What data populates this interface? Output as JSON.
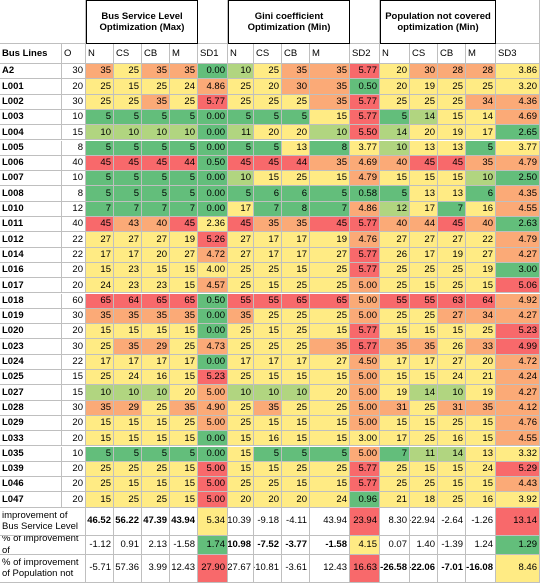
{
  "headers": {
    "group_bus": "Bus Service Level Optimization (Max)",
    "group_gini": "Gini coefficient Optimization (Min)",
    "group_pop": "Population not covered optimization (Min)",
    "bus_lines": "Bus Lines",
    "o": "O",
    "cols": [
      "N",
      "CS",
      "CB",
      "M",
      "SD1",
      "N",
      "CS",
      "CB",
      "M",
      "SD2",
      "N",
      "CS",
      "CB",
      "M",
      "SD3"
    ]
  },
  "colors": {
    "red": "#f8696b",
    "orange": "#fbaa77",
    "yellow": "#ffeb84",
    "lightgreen": "#b1d580",
    "green": "#63be7b",
    "white": "#ffffff"
  },
  "rows": [
    {
      "line": "A2",
      "o": "30",
      "vals": [
        "35",
        "25",
        "35",
        "35",
        "0.00",
        "10",
        "25",
        "35",
        "35",
        "5.77",
        "20",
        "30",
        "28",
        "28",
        "3.86"
      ],
      "cls": [
        "o",
        "y",
        "o",
        "o",
        "G",
        "g",
        "y",
        "o",
        "o",
        "R",
        "y",
        "o",
        "o",
        "o",
        "y"
      ]
    },
    {
      "line": "L001",
      "o": "20",
      "vals": [
        "25",
        "15",
        "25",
        "24",
        "4.86",
        "25",
        "20",
        "30",
        "35",
        "0.50",
        "20",
        "19",
        "25",
        "25",
        "3.20"
      ],
      "cls": [
        "y",
        "y",
        "y",
        "y",
        "o",
        "y",
        "y",
        "o",
        "o",
        "G",
        "y",
        "y",
        "y",
        "y",
        "y"
      ]
    },
    {
      "line": "L002",
      "o": "30",
      "vals": [
        "25",
        "25",
        "35",
        "25",
        "5.77",
        "25",
        "25",
        "25",
        "35",
        "5.77",
        "25",
        "25",
        "25",
        "34",
        "4.36"
      ],
      "cls": [
        "y",
        "y",
        "o",
        "y",
        "R",
        "y",
        "y",
        "y",
        "o",
        "R",
        "y",
        "y",
        "y",
        "o",
        "o"
      ]
    },
    {
      "line": "L003",
      "o": "10",
      "vals": [
        "5",
        "5",
        "5",
        "5",
        "0.00",
        "5",
        "5",
        "5",
        "15",
        "5.77",
        "5",
        "14",
        "15",
        "14",
        "4.69"
      ],
      "cls": [
        "G",
        "G",
        "G",
        "G",
        "G",
        "G",
        "G",
        "G",
        "y",
        "R",
        "G",
        "g",
        "y",
        "y",
        "o"
      ]
    },
    {
      "line": "L004",
      "o": "15",
      "vals": [
        "10",
        "10",
        "10",
        "10",
        "0.00",
        "11",
        "20",
        "20",
        "10",
        "5.50",
        "14",
        "20",
        "19",
        "17",
        "2.65"
      ],
      "cls": [
        "g",
        "g",
        "g",
        "g",
        "G",
        "g",
        "y",
        "y",
        "g",
        "R",
        "g",
        "y",
        "y",
        "y",
        "G"
      ]
    },
    {
      "line": "L005",
      "o": "8",
      "vals": [
        "5",
        "5",
        "5",
        "5",
        "0.00",
        "5",
        "5",
        "13",
        "8",
        "3.77",
        "10",
        "13",
        "13",
        "5",
        "3.77"
      ],
      "cls": [
        "G",
        "G",
        "G",
        "G",
        "G",
        "G",
        "G",
        "y",
        "G",
        "y",
        "g",
        "y",
        "y",
        "G",
        "y"
      ]
    },
    {
      "line": "L006",
      "o": "40",
      "vals": [
        "45",
        "45",
        "45",
        "44",
        "0.50",
        "45",
        "45",
        "44",
        "35",
        "4.69",
        "40",
        "45",
        "45",
        "35",
        "4.79"
      ],
      "cls": [
        "r",
        "r",
        "r",
        "r",
        "G",
        "r",
        "r",
        "r",
        "o",
        "o",
        "o",
        "r",
        "r",
        "o",
        "o"
      ]
    },
    {
      "line": "L007",
      "o": "10",
      "vals": [
        "5",
        "5",
        "5",
        "5",
        "0.00",
        "10",
        "15",
        "25",
        "15",
        "4.79",
        "15",
        "15",
        "15",
        "10",
        "2.50"
      ],
      "cls": [
        "G",
        "G",
        "G",
        "G",
        "G",
        "g",
        "y",
        "y",
        "y",
        "o",
        "y",
        "y",
        "y",
        "g",
        "G"
      ]
    },
    {
      "line": "L008",
      "o": "8",
      "vals": [
        "5",
        "5",
        "5",
        "5",
        "0.00",
        "5",
        "6",
        "6",
        "5",
        "0.58",
        "5",
        "13",
        "13",
        "6",
        "4.35"
      ],
      "cls": [
        "G",
        "G",
        "G",
        "G",
        "G",
        "G",
        "G",
        "G",
        "G",
        "G",
        "G",
        "y",
        "y",
        "G",
        "o"
      ]
    },
    {
      "line": "L010",
      "o": "12",
      "vals": [
        "7",
        "7",
        "7",
        "7",
        "0.00",
        "17",
        "7",
        "8",
        "7",
        "4.86",
        "12",
        "17",
        "7",
        "16",
        "4.55"
      ],
      "cls": [
        "G",
        "G",
        "G",
        "G",
        "G",
        "y",
        "G",
        "G",
        "G",
        "o",
        "g",
        "y",
        "G",
        "y",
        "o"
      ]
    },
    {
      "line": "L011",
      "o": "40",
      "vals": [
        "45",
        "43",
        "40",
        "45",
        "2.36",
        "45",
        "35",
        "35",
        "45",
        "5.77",
        "40",
        "44",
        "45",
        "40",
        "2.63"
      ],
      "cls": [
        "r",
        "o",
        "o",
        "r",
        "y",
        "r",
        "o",
        "o",
        "r",
        "R",
        "o",
        "o",
        "r",
        "o",
        "G"
      ]
    },
    {
      "line": "L012",
      "o": "22",
      "vals": [
        "27",
        "27",
        "27",
        "19",
        "5.26",
        "27",
        "17",
        "17",
        "19",
        "4.76",
        "27",
        "27",
        "27",
        "22",
        "4.79"
      ],
      "cls": [
        "y",
        "y",
        "y",
        "y",
        "R",
        "y",
        "y",
        "y",
        "y",
        "o",
        "y",
        "y",
        "y",
        "y",
        "o"
      ]
    },
    {
      "line": "L014",
      "o": "22",
      "vals": [
        "17",
        "17",
        "20",
        "27",
        "4.72",
        "27",
        "17",
        "17",
        "27",
        "5.77",
        "26",
        "17",
        "19",
        "27",
        "4.27"
      ],
      "cls": [
        "y",
        "y",
        "y",
        "y",
        "o",
        "y",
        "y",
        "y",
        "y",
        "R",
        "y",
        "y",
        "y",
        "y",
        "o"
      ]
    },
    {
      "line": "L016",
      "o": "20",
      "vals": [
        "15",
        "23",
        "15",
        "15",
        "4.00",
        "25",
        "25",
        "15",
        "25",
        "5.77",
        "25",
        "25",
        "25",
        "19",
        "3.00"
      ],
      "cls": [
        "y",
        "y",
        "y",
        "y",
        "y",
        "y",
        "y",
        "y",
        "y",
        "R",
        "y",
        "y",
        "y",
        "y",
        "G"
      ]
    },
    {
      "line": "L017",
      "o": "20",
      "vals": [
        "24",
        "23",
        "23",
        "15",
        "4.57",
        "25",
        "15",
        "25",
        "25",
        "5.00",
        "25",
        "15",
        "25",
        "15",
        "5.06"
      ],
      "cls": [
        "y",
        "y",
        "y",
        "y",
        "o",
        "y",
        "y",
        "y",
        "y",
        "o",
        "y",
        "y",
        "y",
        "y",
        "R"
      ]
    },
    {
      "line": "L018",
      "o": "60",
      "vals": [
        "65",
        "64",
        "65",
        "65",
        "0.50",
        "55",
        "55",
        "65",
        "65",
        "5.00",
        "55",
        "55",
        "63",
        "64",
        "4.92"
      ],
      "cls": [
        "R",
        "R",
        "R",
        "R",
        "G",
        "R",
        "R",
        "R",
        "R",
        "o",
        "R",
        "R",
        "R",
        "R",
        "o"
      ]
    },
    {
      "line": "L019",
      "o": "30",
      "vals": [
        "35",
        "35",
        "35",
        "35",
        "0.00",
        "35",
        "25",
        "25",
        "25",
        "5.00",
        "25",
        "25",
        "27",
        "34",
        "4.27"
      ],
      "cls": [
        "o",
        "o",
        "o",
        "o",
        "G",
        "o",
        "y",
        "y",
        "y",
        "o",
        "y",
        "y",
        "o",
        "o",
        "o"
      ]
    },
    {
      "line": "L020",
      "o": "20",
      "vals": [
        "15",
        "15",
        "15",
        "15",
        "0.00",
        "25",
        "15",
        "25",
        "15",
        "5.77",
        "15",
        "15",
        "15",
        "25",
        "5.23"
      ],
      "cls": [
        "y",
        "y",
        "y",
        "y",
        "G",
        "y",
        "y",
        "y",
        "y",
        "R",
        "y",
        "y",
        "y",
        "y",
        "R"
      ]
    },
    {
      "line": "L023",
      "o": "30",
      "vals": [
        "25",
        "35",
        "29",
        "25",
        "4.73",
        "25",
        "25",
        "25",
        "35",
        "5.77",
        "35",
        "35",
        "26",
        "33",
        "4.99"
      ],
      "cls": [
        "y",
        "o",
        "o",
        "y",
        "o",
        "y",
        "y",
        "y",
        "o",
        "R",
        "o",
        "o",
        "y",
        "o",
        "R"
      ]
    },
    {
      "line": "L024",
      "o": "22",
      "vals": [
        "17",
        "17",
        "17",
        "17",
        "0.00",
        "17",
        "17",
        "17",
        "27",
        "4.50",
        "17",
        "17",
        "27",
        "20",
        "4.72"
      ],
      "cls": [
        "y",
        "y",
        "y",
        "y",
        "G",
        "y",
        "y",
        "y",
        "y",
        "o",
        "y",
        "y",
        "y",
        "y",
        "o"
      ]
    },
    {
      "line": "L025",
      "o": "15",
      "vals": [
        "25",
        "24",
        "16",
        "15",
        "5.23",
        "25",
        "15",
        "15",
        "15",
        "5.00",
        "15",
        "15",
        "24",
        "21",
        "4.24"
      ],
      "cls": [
        "y",
        "y",
        "y",
        "y",
        "R",
        "y",
        "y",
        "y",
        "y",
        "o",
        "y",
        "y",
        "y",
        "y",
        "o"
      ]
    },
    {
      "line": "L027",
      "o": "15",
      "vals": [
        "10",
        "10",
        "10",
        "20",
        "5.00",
        "10",
        "10",
        "10",
        "20",
        "5.00",
        "19",
        "14",
        "10",
        "19",
        "4.27"
      ],
      "cls": [
        "g",
        "g",
        "g",
        "y",
        "o",
        "g",
        "g",
        "g",
        "y",
        "o",
        "y",
        "g",
        "g",
        "y",
        "o"
      ]
    },
    {
      "line": "L028",
      "o": "30",
      "vals": [
        "35",
        "29",
        "25",
        "35",
        "4.90",
        "25",
        "35",
        "25",
        "25",
        "5.00",
        "31",
        "25",
        "31",
        "35",
        "4.12"
      ],
      "cls": [
        "o",
        "o",
        "y",
        "o",
        "o",
        "y",
        "o",
        "y",
        "y",
        "o",
        "o",
        "y",
        "o",
        "o",
        "o"
      ]
    },
    {
      "line": "L029",
      "o": "20",
      "vals": [
        "15",
        "15",
        "15",
        "25",
        "5.00",
        "25",
        "15",
        "15",
        "15",
        "5.00",
        "15",
        "15",
        "25",
        "15",
        "4.76"
      ],
      "cls": [
        "y",
        "y",
        "y",
        "y",
        "o",
        "y",
        "y",
        "y",
        "y",
        "o",
        "y",
        "y",
        "y",
        "y",
        "o"
      ]
    },
    {
      "line": "L033",
      "o": "20",
      "vals": [
        "15",
        "15",
        "15",
        "15",
        "0.00",
        "15",
        "16",
        "15",
        "15",
        "3.00",
        "17",
        "25",
        "16",
        "15",
        "4.55"
      ],
      "cls": [
        "y",
        "y",
        "y",
        "y",
        "G",
        "y",
        "y",
        "y",
        "y",
        "y",
        "y",
        "y",
        "y",
        "y",
        "o"
      ]
    },
    {
      "line": "L035",
      "o": "10",
      "vals": [
        "5",
        "5",
        "5",
        "5",
        "0.00",
        "15",
        "5",
        "5",
        "5",
        "5.00",
        "7",
        "11",
        "14",
        "13",
        "3.32"
      ],
      "cls": [
        "G",
        "G",
        "G",
        "G",
        "G",
        "y",
        "G",
        "G",
        "G",
        "o",
        "G",
        "g",
        "g",
        "y",
        "y"
      ]
    },
    {
      "line": "L039",
      "o": "20",
      "vals": [
        "25",
        "25",
        "25",
        "15",
        "5.00",
        "15",
        "15",
        "25",
        "25",
        "5.77",
        "25",
        "15",
        "15",
        "24",
        "5.29"
      ],
      "cls": [
        "y",
        "y",
        "y",
        "y",
        "R",
        "y",
        "y",
        "y",
        "y",
        "R",
        "y",
        "y",
        "y",
        "y",
        "R"
      ]
    },
    {
      "line": "L046",
      "o": "20",
      "vals": [
        "25",
        "15",
        "15",
        "15",
        "5.00",
        "25",
        "25",
        "15",
        "15",
        "5.77",
        "25",
        "25",
        "15",
        "15",
        "4.43"
      ],
      "cls": [
        "y",
        "y",
        "y",
        "y",
        "R",
        "y",
        "y",
        "y",
        "y",
        "R",
        "y",
        "y",
        "y",
        "y",
        "o"
      ]
    },
    {
      "line": "L047",
      "o": "20",
      "vals": [
        "15",
        "25",
        "25",
        "15",
        "5.00",
        "20",
        "20",
        "20",
        "24",
        "0.96",
        "21",
        "18",
        "25",
        "16",
        "3.92"
      ],
      "cls": [
        "y",
        "y",
        "y",
        "y",
        "R",
        "y",
        "y",
        "y",
        "y",
        "G",
        "y",
        "y",
        "y",
        "y",
        "y"
      ]
    }
  ],
  "summary": [
    {
      "label": "improvement of Bus Service Level",
      "vals": [
        "46.52",
        "56.22",
        "47.39",
        "43.94",
        "5.34",
        "10.39",
        "-9.18",
        "-4.11",
        "43.94",
        "23.94",
        "8.30",
        "-22.94",
        "-2.64",
        "-1.26",
        "13.14"
      ],
      "bold": [
        1,
        1,
        1,
        1,
        0,
        0,
        0,
        0,
        0,
        0,
        0,
        0,
        0,
        0,
        0
      ],
      "cls": [
        "w",
        "w",
        "w",
        "w",
        "y",
        "w",
        "w",
        "w",
        "w",
        "R",
        "w",
        "w",
        "w",
        "w",
        "R"
      ]
    },
    {
      "label": "% of improvement of",
      "vals": [
        "-1.12",
        "0.91",
        "2.13",
        "-1.58",
        "1.74",
        "-10.98",
        "-7.52",
        "-3.77",
        "-1.58",
        "4.15",
        "0.07",
        "1.40",
        "-1.39",
        "1.24",
        "1.29"
      ],
      "bold": [
        0,
        0,
        0,
        0,
        0,
        1,
        1,
        1,
        1,
        0,
        0,
        0,
        0,
        0,
        0
      ],
      "cls": [
        "w",
        "w",
        "w",
        "w",
        "G",
        "w",
        "w",
        "w",
        "w",
        "y",
        "w",
        "w",
        "w",
        "w",
        "G"
      ]
    },
    {
      "label": "% of improvement of Population not",
      "vals": [
        "-5.71",
        "57.36",
        "3.99",
        "12.43",
        "27.90",
        "-27.67",
        "-10.81",
        "-3.61",
        "12.43",
        "16.63",
        "-26.58",
        "-22.06",
        "-7.01",
        "-16.08",
        "8.46"
      ],
      "bold": [
        0,
        0,
        0,
        0,
        0,
        0,
        0,
        0,
        0,
        0,
        1,
        1,
        1,
        1,
        0
      ],
      "cls": [
        "w",
        "w",
        "w",
        "w",
        "R",
        "w",
        "w",
        "w",
        "w",
        "R",
        "w",
        "w",
        "w",
        "w",
        "y"
      ]
    }
  ]
}
